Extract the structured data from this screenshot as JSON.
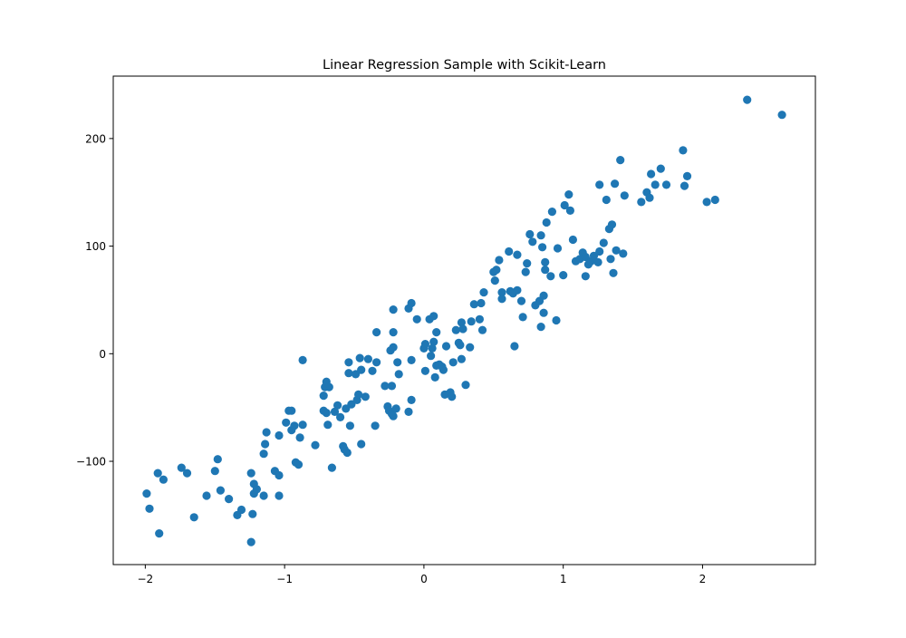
{
  "chart_data": {
    "type": "scatter",
    "title": "Linear Regression Sample with Scikit-Learn",
    "xlabel": "",
    "ylabel": "",
    "xlim": [
      -2.23,
      2.81
    ],
    "ylim": [
      -196,
      258
    ],
    "xticks": [
      -2,
      -1,
      0,
      1,
      2
    ],
    "xtick_labels": [
      "−2",
      "−1",
      "0",
      "1",
      "2"
    ],
    "yticks": [
      -100,
      0,
      100,
      200
    ],
    "ytick_labels": [
      "−100",
      "0",
      "100",
      "200"
    ],
    "grid": false,
    "legend": "none",
    "marker_color": "#1f77b4",
    "series": [
      {
        "points": [
          [
            -1.99,
            -130
          ],
          [
            -1.97,
            -144
          ],
          [
            -1.91,
            -111
          ],
          [
            -1.9,
            -167
          ],
          [
            -1.87,
            -117
          ],
          [
            -1.74,
            -106
          ],
          [
            -1.7,
            -111
          ],
          [
            -1.65,
            -152
          ],
          [
            -1.56,
            -132
          ],
          [
            -1.5,
            -109
          ],
          [
            -1.48,
            -98
          ],
          [
            -1.46,
            -127
          ],
          [
            -1.4,
            -135
          ],
          [
            -1.34,
            -150
          ],
          [
            -1.31,
            -145
          ],
          [
            -1.24,
            -175
          ],
          [
            -1.24,
            -111
          ],
          [
            -1.23,
            -149
          ],
          [
            -1.22,
            -121
          ],
          [
            -1.22,
            -130
          ],
          [
            -1.2,
            -126
          ],
          [
            -1.15,
            -132
          ],
          [
            -1.15,
            -93
          ],
          [
            -1.14,
            -84
          ],
          [
            -1.13,
            -73
          ],
          [
            -1.07,
            -109
          ],
          [
            -1.04,
            -113
          ],
          [
            -1.04,
            -132
          ],
          [
            -1.04,
            -76
          ],
          [
            -0.99,
            -64
          ],
          [
            -0.97,
            -53
          ],
          [
            -0.95,
            -53
          ],
          [
            -0.95,
            -71
          ],
          [
            -0.93,
            -67
          ],
          [
            -0.92,
            -101
          ],
          [
            -0.9,
            -103
          ],
          [
            -0.89,
            -78
          ],
          [
            -0.87,
            -66
          ],
          [
            -0.87,
            -6
          ],
          [
            -0.78,
            -85
          ],
          [
            -0.72,
            -39
          ],
          [
            -0.72,
            -53
          ],
          [
            -0.71,
            -31
          ],
          [
            -0.7,
            -26
          ],
          [
            -0.7,
            -55
          ],
          [
            -0.69,
            -66
          ],
          [
            -0.68,
            -31
          ],
          [
            -0.66,
            -106
          ],
          [
            -0.64,
            -54
          ],
          [
            -0.62,
            -48
          ],
          [
            -0.6,
            -59
          ],
          [
            -0.58,
            -86
          ],
          [
            -0.57,
            -89
          ],
          [
            -0.56,
            -51
          ],
          [
            -0.55,
            -92
          ],
          [
            -0.54,
            -18
          ],
          [
            -0.54,
            -8
          ],
          [
            -0.53,
            -67
          ],
          [
            -0.52,
            -47
          ],
          [
            -0.49,
            -19
          ],
          [
            -0.48,
            -43
          ],
          [
            -0.47,
            -38
          ],
          [
            -0.46,
            -4
          ],
          [
            -0.45,
            -84
          ],
          [
            -0.45,
            -15
          ],
          [
            -0.42,
            -40
          ],
          [
            -0.4,
            -5
          ],
          [
            -0.37,
            -16
          ],
          [
            -0.35,
            -67
          ],
          [
            -0.34,
            -8
          ],
          [
            -0.34,
            20
          ],
          [
            -0.28,
            -30
          ],
          [
            -0.26,
            -49
          ],
          [
            -0.25,
            -53
          ],
          [
            -0.24,
            3
          ],
          [
            -0.23,
            -30
          ],
          [
            -0.23,
            -56
          ],
          [
            -0.22,
            -58
          ],
          [
            -0.22,
            6
          ],
          [
            -0.22,
            20
          ],
          [
            -0.22,
            41
          ],
          [
            -0.2,
            -51
          ],
          [
            -0.19,
            -8
          ],
          [
            -0.18,
            -19
          ],
          [
            -0.11,
            -54
          ],
          [
            -0.11,
            42
          ],
          [
            -0.09,
            -43
          ],
          [
            -0.09,
            47
          ],
          [
            -0.09,
            -6
          ],
          [
            -0.05,
            32
          ],
          [
            0.0,
            5
          ],
          [
            0.01,
            9
          ],
          [
            0.01,
            -16
          ],
          [
            0.04,
            32
          ],
          [
            0.05,
            -2
          ],
          [
            0.06,
            5
          ],
          [
            0.07,
            11
          ],
          [
            0.07,
            35
          ],
          [
            0.08,
            -22
          ],
          [
            0.09,
            -11
          ],
          [
            0.09,
            20
          ],
          [
            0.11,
            -10
          ],
          [
            0.13,
            -12
          ],
          [
            0.14,
            -15
          ],
          [
            0.15,
            -38
          ],
          [
            0.16,
            7
          ],
          [
            0.19,
            -36
          ],
          [
            0.2,
            -40
          ],
          [
            0.21,
            -8
          ],
          [
            0.23,
            22
          ],
          [
            0.25,
            10
          ],
          [
            0.26,
            8
          ],
          [
            0.27,
            -5
          ],
          [
            0.27,
            29
          ],
          [
            0.28,
            23
          ],
          [
            0.3,
            -29
          ],
          [
            0.33,
            6
          ],
          [
            0.34,
            30
          ],
          [
            0.36,
            46
          ],
          [
            0.4,
            32
          ],
          [
            0.41,
            47
          ],
          [
            0.42,
            22
          ],
          [
            0.43,
            57
          ],
          [
            0.5,
            76
          ],
          [
            0.51,
            68
          ],
          [
            0.52,
            78
          ],
          [
            0.54,
            87
          ],
          [
            0.56,
            51
          ],
          [
            0.56,
            57
          ],
          [
            0.61,
            95
          ],
          [
            0.62,
            58
          ],
          [
            0.64,
            56
          ],
          [
            0.65,
            7
          ],
          [
            0.67,
            59
          ],
          [
            0.67,
            92
          ],
          [
            0.7,
            49
          ],
          [
            0.71,
            34
          ],
          [
            0.73,
            76
          ],
          [
            0.74,
            84
          ],
          [
            0.76,
            111
          ],
          [
            0.78,
            104
          ],
          [
            0.8,
            45
          ],
          [
            0.83,
            49
          ],
          [
            0.84,
            25
          ],
          [
            0.84,
            110
          ],
          [
            0.85,
            99
          ],
          [
            0.86,
            54
          ],
          [
            0.86,
            38
          ],
          [
            0.87,
            85
          ],
          [
            0.87,
            78
          ],
          [
            0.88,
            122
          ],
          [
            0.91,
            72
          ],
          [
            0.92,
            132
          ],
          [
            0.95,
            31
          ],
          [
            0.96,
            98
          ],
          [
            1.0,
            73
          ],
          [
            1.01,
            138
          ],
          [
            1.04,
            148
          ],
          [
            1.05,
            133
          ],
          [
            1.07,
            106
          ],
          [
            1.09,
            86
          ],
          [
            1.12,
            88
          ],
          [
            1.14,
            94
          ],
          [
            1.16,
            72
          ],
          [
            1.16,
            90
          ],
          [
            1.18,
            83
          ],
          [
            1.2,
            86
          ],
          [
            1.22,
            91
          ],
          [
            1.25,
            85
          ],
          [
            1.26,
            95
          ],
          [
            1.26,
            157
          ],
          [
            1.29,
            103
          ],
          [
            1.31,
            143
          ],
          [
            1.33,
            116
          ],
          [
            1.34,
            88
          ],
          [
            1.35,
            120
          ],
          [
            1.36,
            75
          ],
          [
            1.37,
            158
          ],
          [
            1.38,
            96
          ],
          [
            1.41,
            180
          ],
          [
            1.43,
            93
          ],
          [
            1.44,
            147
          ],
          [
            1.56,
            141
          ],
          [
            1.6,
            150
          ],
          [
            1.62,
            145
          ],
          [
            1.63,
            167
          ],
          [
            1.66,
            157
          ],
          [
            1.7,
            172
          ],
          [
            1.74,
            157
          ],
          [
            1.86,
            189
          ],
          [
            1.87,
            156
          ],
          [
            1.89,
            165
          ],
          [
            2.03,
            141
          ],
          [
            2.09,
            143
          ],
          [
            2.32,
            236
          ],
          [
            2.57,
            222
          ]
        ]
      }
    ]
  }
}
